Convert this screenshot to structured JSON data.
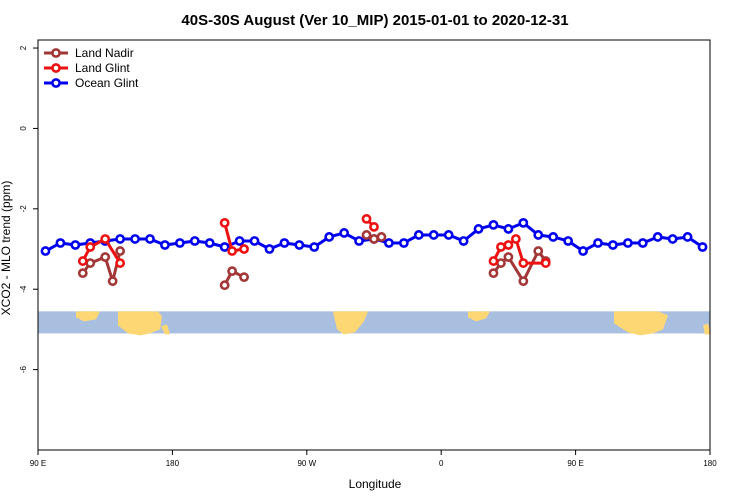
{
  "chart_data": {
    "type": "line",
    "title": "40S-30S August (Ver 10_MIP)   2015-01-01 to 2020-12-31",
    "xlabel": "Longitude",
    "ylabel": "XCO2 - MLO trend (ppm)",
    "xlim": [
      90,
      540
    ],
    "ylim": [
      -8,
      2.2
    ],
    "x_ticks": [
      {
        "value": 90,
        "label": "90 E"
      },
      {
        "value": 180,
        "label": "180"
      },
      {
        "value": 270,
        "label": "90 W"
      },
      {
        "value": 360,
        "label": "0"
      },
      {
        "value": 450,
        "label": "90 E"
      },
      {
        "value": 540,
        "label": "180"
      }
    ],
    "y_ticks": [
      {
        "value": 2,
        "label": "2"
      },
      {
        "value": 0,
        "label": "0"
      },
      {
        "value": -2,
        "label": "-2"
      },
      {
        "value": -4,
        "label": "-4"
      },
      {
        "value": -6,
        "label": "-6"
      }
    ],
    "legend": "top-left",
    "map_strip": {
      "y_top": -4.55,
      "y_bottom": -5.1,
      "ocean_color": "#a8bfdf",
      "land_color": "#fdd774"
    },
    "series": [
      {
        "name": "Land Nadir",
        "color": "#a33636",
        "x": [
          120,
          125,
          135,
          140,
          145,
          215,
          220,
          228,
          310,
          315,
          320,
          395,
          400,
          405,
          415,
          425,
          430
        ],
        "y": [
          -3.6,
          -3.35,
          -3.2,
          -3.8,
          -3.05,
          -3.9,
          -3.55,
          -3.7,
          -2.65,
          -2.75,
          -2.7,
          -3.6,
          -3.35,
          -3.2,
          -3.8,
          -3.05,
          -3.3
        ],
        "segments": [
          [
            0,
            5
          ],
          [
            5,
            8
          ],
          [
            8,
            11
          ],
          [
            11,
            17
          ]
        ]
      },
      {
        "name": "Land Glint",
        "color": "#ee1111",
        "x": [
          120,
          125,
          135,
          145,
          215,
          220,
          228,
          310,
          315,
          395,
          400,
          405,
          410,
          415,
          430
        ],
        "y": [
          -3.3,
          -2.95,
          -2.75,
          -3.35,
          -2.35,
          -3.05,
          -3.0,
          -2.25,
          -2.45,
          -3.3,
          -2.95,
          -2.9,
          -2.75,
          -3.35,
          -3.35
        ],
        "segments": [
          [
            0,
            4
          ],
          [
            4,
            7
          ],
          [
            7,
            9
          ],
          [
            9,
            15
          ]
        ]
      },
      {
        "name": "Ocean Glint",
        "color": "#0000ee",
        "x": [
          95,
          105,
          115,
          125,
          135,
          145,
          155,
          165,
          175,
          185,
          195,
          205,
          215,
          225,
          235,
          245,
          255,
          265,
          275,
          285,
          295,
          305,
          315,
          325,
          335,
          345,
          355,
          365,
          375,
          385,
          395,
          405,
          415,
          425,
          435,
          445,
          455,
          465,
          475,
          485,
          495,
          505,
          515,
          525,
          535
        ],
        "y": [
          -3.05,
          -2.85,
          -2.9,
          -2.85,
          -2.8,
          -2.75,
          -2.75,
          -2.75,
          -2.9,
          -2.85,
          -2.8,
          -2.85,
          -2.95,
          -2.8,
          -2.8,
          -3.0,
          -2.85,
          -2.9,
          -2.95,
          -2.7,
          -2.6,
          -2.8,
          -2.75,
          -2.85,
          -2.85,
          -2.65,
          -2.65,
          -2.65,
          -2.8,
          -2.5,
          -2.4,
          -2.5,
          -2.35,
          -2.65,
          -2.7,
          -2.8,
          -3.05,
          -2.85,
          -2.9,
          -2.85,
          -2.85,
          -2.7,
          -2.75,
          -2.7,
          -2.95
        ]
      }
    ]
  }
}
